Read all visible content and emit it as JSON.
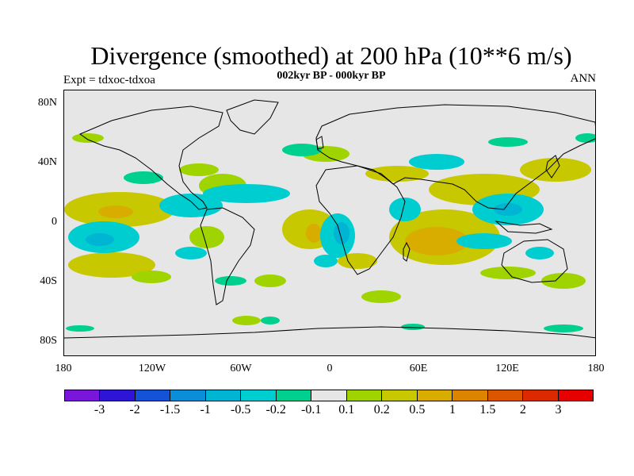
{
  "title": "Divergence (smoothed) at 200 hPa (10**6 m/s)",
  "subtitle": "002kyr BP - 000kyr BP",
  "expt_label": "Expt = tdxoc-tdxoa",
  "season": "ANN",
  "y_ticks": [
    "80N",
    "40N",
    "0",
    "40S",
    "80S"
  ],
  "x_ticks": [
    "180",
    "120W",
    "60W",
    "0",
    "60E",
    "120E",
    "180"
  ],
  "colorbar": {
    "labels": [
      "-3",
      "-2",
      "-1.5",
      "-1",
      "-0.5",
      "-0.2",
      "-0.1",
      "0.1",
      "0.2",
      "0.5",
      "1",
      "1.5",
      "2",
      "3"
    ],
    "colors": [
      "#7a16d9",
      "#2d14d6",
      "#1452d8",
      "#0a8ed8",
      "#00b4d4",
      "#00cdd0",
      "#00d08f",
      "#e6e6e6",
      "#9fd400",
      "#c8c800",
      "#d9ad00",
      "#dc8300",
      "#dc5600",
      "#dc2a00",
      "#e60000"
    ]
  },
  "colors": {
    "background": "#e6e6e6",
    "positive_weak": "#9fd400",
    "positive_mid": "#c8c800",
    "positive_strong": "#d9ad00",
    "negative_weak": "#00d08f",
    "negative_mid": "#00cdd0",
    "negative_strong": "#00b4d4"
  }
}
